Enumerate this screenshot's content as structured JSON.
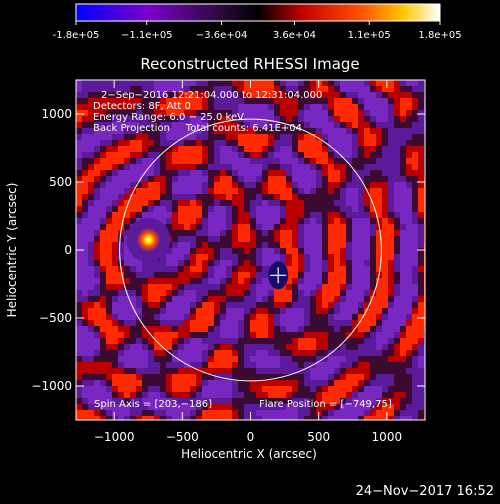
{
  "colorbar": {
    "ticks": [
      {
        "value": -180000,
        "label": "-1.8e+05"
      },
      {
        "value": -110000,
        "label": "−1.1e+05"
      },
      {
        "value": -36000,
        "label": "−3.6e+04"
      },
      {
        "value": 36000,
        "label": "3.6e+04"
      },
      {
        "value": 110000,
        "label": "1.1e+05"
      },
      {
        "value": 180000,
        "label": "1.8e+05"
      }
    ],
    "range": [
      -180000,
      180000
    ]
  },
  "chart_data": {
    "type": "heatmap",
    "title": "Reconstructed RHESSI Image",
    "xlabel": "Heliocentric X (arcsec)",
    "ylabel": "Heliocentric Y (arcsec)",
    "xlim": [
      -1280,
      1280
    ],
    "ylim": [
      -1250,
      1250
    ],
    "xticks": [
      {
        "value": -1000,
        "label": "−1000"
      },
      {
        "value": -500,
        "label": "−500"
      },
      {
        "value": 0,
        "label": "0"
      },
      {
        "value": 500,
        "label": "500"
      },
      {
        "value": 1000,
        "label": "1000"
      }
    ],
    "yticks": [
      {
        "value": 1000,
        "label": "1000"
      },
      {
        "value": 500,
        "label": "500"
      },
      {
        "value": 0,
        "label": "0"
      },
      {
        "value": -500,
        "label": "−500"
      },
      {
        "value": -1000,
        "label": "−1000"
      }
    ],
    "annotations": [
      "2−Sep−2016 12:21:04.000 to 12:31:04.000",
      "Detectors: 8F, Att 0",
      "Energy Range: 6.0 − 25.0 keV",
      "Back Projection     Total counts: 6.41E+04"
    ],
    "footer_left": "Spin Axis = [203,−186]",
    "footer_right": "Flare Position = [−749,75]",
    "solar_limb": {
      "center": [
        0,
        0
      ],
      "radius": 960
    },
    "sources": [
      {
        "name": "flare-source",
        "x": -749,
        "y": 75
      },
      {
        "name": "spin-axis",
        "x": 203,
        "y": -186
      }
    ]
  },
  "timestamp": "24−Nov−2017 16:52"
}
